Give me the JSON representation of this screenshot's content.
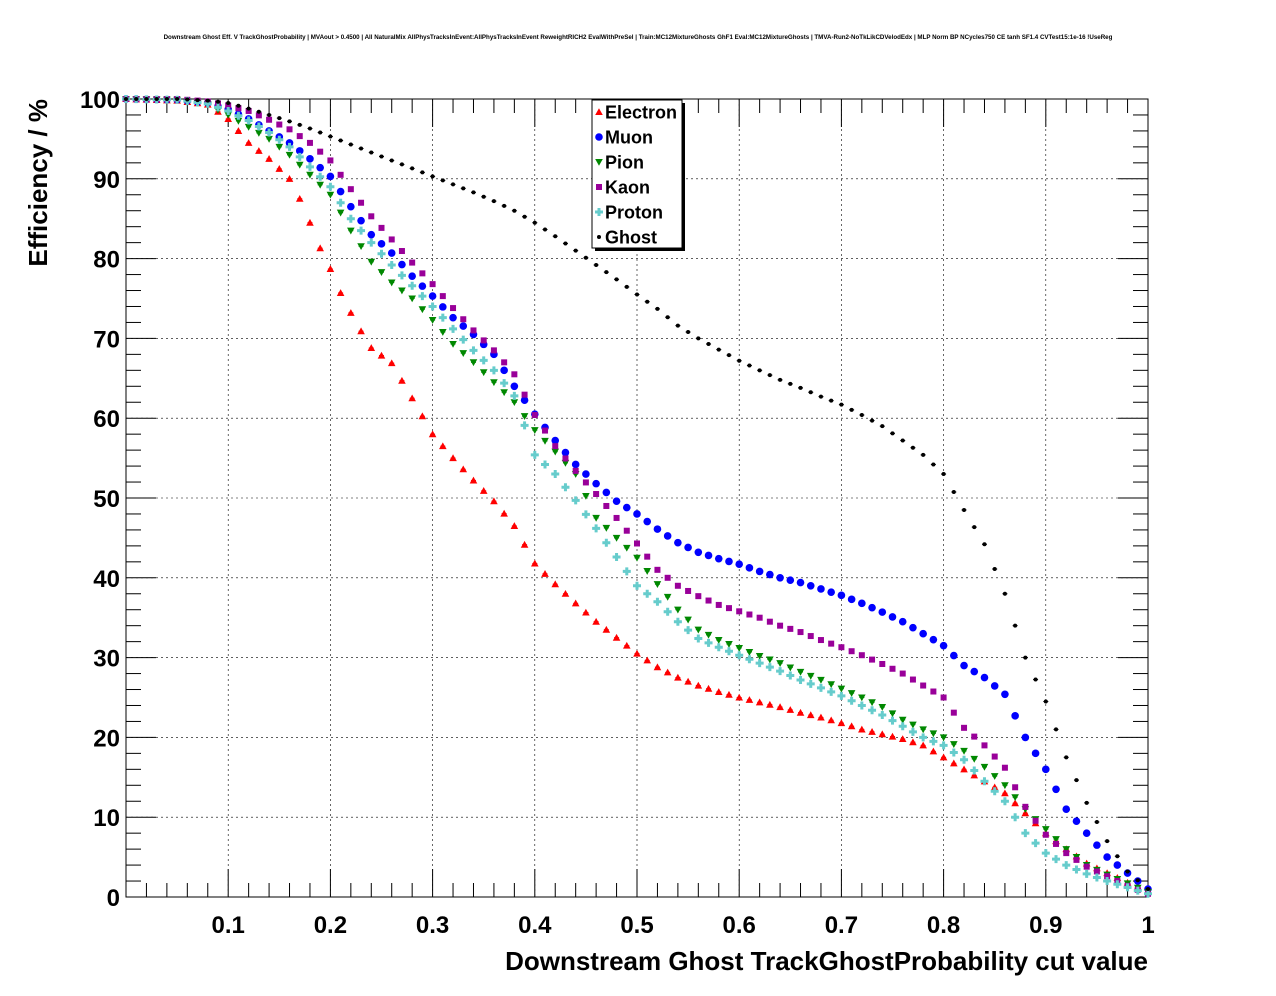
{
  "chart_data": {
    "type": "scatter",
    "title": "Downstream Ghost Eff. V TrackGhostProbability | MVAout > 0.4500 | All NaturalMix AllPhysTracksInEvent:AllPhysTracksInEvent ReweightRICH2 EvalWithPreSel | Train:MC12MixtureGhosts GhF1 Eval:MC12MixtureGhosts | TMVA-Run2-NoTkLikCDVelodEdx | MLP Norm BP NCycles750 CE tanh SF1.4 CVTest15:1e-16 !UseReg",
    "xlabel": "Downstream Ghost TrackGhostProbability cut value",
    "ylabel": "Efficiency / %",
    "xlim": [
      0,
      1
    ],
    "ylim": [
      0,
      100
    ],
    "grid": true,
    "legend_position": "top-center",
    "x_ticks": [
      "0.1",
      "0.2",
      "0.3",
      "0.4",
      "0.5",
      "0.6",
      "0.7",
      "0.8",
      "0.9",
      "1"
    ],
    "y_ticks": [
      "0",
      "10",
      "20",
      "30",
      "40",
      "50",
      "60",
      "70",
      "80",
      "90",
      "100"
    ],
    "x_tick_values": [
      0.1,
      0.2,
      0.3,
      0.4,
      0.5,
      0.6,
      0.7,
      0.8,
      0.9,
      1.0
    ],
    "y_tick_values": [
      0,
      10,
      20,
      30,
      40,
      50,
      60,
      70,
      80,
      90,
      100
    ],
    "series": [
      {
        "name": "Electron",
        "color": "#ff0000",
        "marker": "triangle-up",
        "points": [
          [
            0.0,
            100
          ],
          [
            0.05,
            99.8
          ],
          [
            0.08,
            99.3
          ],
          [
            0.1,
            97.5
          ],
          [
            0.12,
            94.5
          ],
          [
            0.14,
            92.5
          ],
          [
            0.16,
            90.0
          ],
          [
            0.17,
            87.5
          ],
          [
            0.18,
            84.5
          ],
          [
            0.19,
            81.3
          ],
          [
            0.2,
            78.7
          ],
          [
            0.21,
            75.7
          ],
          [
            0.22,
            73.2
          ],
          [
            0.23,
            70.9
          ],
          [
            0.24,
            68.8
          ],
          [
            0.26,
            66.9
          ],
          [
            0.28,
            62.5
          ],
          [
            0.3,
            58.0
          ],
          [
            0.32,
            55.0
          ],
          [
            0.34,
            52.2
          ],
          [
            0.36,
            49.6
          ],
          [
            0.38,
            46.5
          ],
          [
            0.4,
            41.8
          ],
          [
            0.42,
            39.2
          ],
          [
            0.44,
            36.8
          ],
          [
            0.46,
            34.5
          ],
          [
            0.48,
            32.5
          ],
          [
            0.5,
            30.5
          ],
          [
            0.52,
            28.8
          ],
          [
            0.54,
            27.5
          ],
          [
            0.56,
            26.5
          ],
          [
            0.58,
            25.7
          ],
          [
            0.6,
            25.0
          ],
          [
            0.62,
            24.4
          ],
          [
            0.64,
            23.8
          ],
          [
            0.66,
            23.1
          ],
          [
            0.68,
            22.5
          ],
          [
            0.7,
            21.8
          ],
          [
            0.72,
            21.0
          ],
          [
            0.74,
            20.4
          ],
          [
            0.76,
            19.8
          ],
          [
            0.78,
            19.0
          ],
          [
            0.8,
            17.5
          ],
          [
            0.82,
            16.0
          ],
          [
            0.84,
            14.5
          ],
          [
            0.86,
            13.0
          ],
          [
            0.88,
            10.5
          ],
          [
            0.9,
            8.0
          ],
          [
            0.92,
            6.0
          ],
          [
            0.94,
            4.2
          ],
          [
            0.96,
            3.0
          ],
          [
            0.98,
            1.8
          ],
          [
            1.0,
            0.8
          ]
        ]
      },
      {
        "name": "Muon",
        "color": "#0000ff",
        "marker": "circle",
        "points": [
          [
            0.0,
            100
          ],
          [
            0.05,
            99.9
          ],
          [
            0.08,
            99.5
          ],
          [
            0.1,
            98.7
          ],
          [
            0.12,
            97.5
          ],
          [
            0.14,
            96.0
          ],
          [
            0.16,
            94.5
          ],
          [
            0.18,
            92.5
          ],
          [
            0.2,
            90.3
          ],
          [
            0.22,
            86.5
          ],
          [
            0.24,
            83.0
          ],
          [
            0.26,
            80.7
          ],
          [
            0.28,
            77.8
          ],
          [
            0.3,
            75.3
          ],
          [
            0.32,
            72.6
          ],
          [
            0.34,
            70.5
          ],
          [
            0.36,
            68.0
          ],
          [
            0.38,
            64.0
          ],
          [
            0.4,
            60.5
          ],
          [
            0.42,
            57.2
          ],
          [
            0.44,
            54.2
          ],
          [
            0.46,
            51.8
          ],
          [
            0.48,
            49.6
          ],
          [
            0.5,
            48.0
          ],
          [
            0.52,
            46.1
          ],
          [
            0.54,
            44.4
          ],
          [
            0.56,
            43.2
          ],
          [
            0.58,
            42.4
          ],
          [
            0.6,
            41.7
          ],
          [
            0.62,
            40.8
          ],
          [
            0.64,
            40.0
          ],
          [
            0.66,
            39.4
          ],
          [
            0.68,
            38.6
          ],
          [
            0.7,
            37.8
          ],
          [
            0.72,
            36.8
          ],
          [
            0.74,
            35.7
          ],
          [
            0.76,
            34.5
          ],
          [
            0.78,
            33.0
          ],
          [
            0.8,
            31.5
          ],
          [
            0.82,
            29.0
          ],
          [
            0.84,
            27.5
          ],
          [
            0.86,
            25.4
          ],
          [
            0.88,
            20.0
          ],
          [
            0.9,
            16.0
          ],
          [
            0.92,
            11.0
          ],
          [
            0.94,
            8.0
          ],
          [
            0.96,
            5.0
          ],
          [
            0.98,
            3.0
          ],
          [
            1.0,
            1.0
          ]
        ]
      },
      {
        "name": "Pion",
        "color": "#008800",
        "marker": "triangle-down",
        "points": [
          [
            0.0,
            100
          ],
          [
            0.05,
            99.9
          ],
          [
            0.08,
            99.3
          ],
          [
            0.1,
            98.0
          ],
          [
            0.12,
            96.5
          ],
          [
            0.14,
            95.0
          ],
          [
            0.16,
            93.0
          ],
          [
            0.18,
            90.5
          ],
          [
            0.2,
            88.0
          ],
          [
            0.22,
            83.5
          ],
          [
            0.24,
            79.6
          ],
          [
            0.26,
            77.0
          ],
          [
            0.28,
            75.0
          ],
          [
            0.3,
            72.3
          ],
          [
            0.32,
            69.3
          ],
          [
            0.34,
            67.0
          ],
          [
            0.36,
            64.5
          ],
          [
            0.38,
            62.0
          ],
          [
            0.4,
            58.5
          ],
          [
            0.42,
            55.8
          ],
          [
            0.44,
            53.0
          ],
          [
            0.46,
            47.5
          ],
          [
            0.48,
            45.0
          ],
          [
            0.5,
            42.5
          ],
          [
            0.52,
            39.2
          ],
          [
            0.54,
            36.0
          ],
          [
            0.56,
            33.5
          ],
          [
            0.58,
            32.2
          ],
          [
            0.6,
            31.2
          ],
          [
            0.62,
            30.2
          ],
          [
            0.64,
            29.3
          ],
          [
            0.66,
            28.2
          ],
          [
            0.68,
            27.2
          ],
          [
            0.7,
            26.1
          ],
          [
            0.72,
            25.0
          ],
          [
            0.74,
            23.8
          ],
          [
            0.76,
            22.2
          ],
          [
            0.78,
            21.0
          ],
          [
            0.8,
            20.0
          ],
          [
            0.82,
            18.3
          ],
          [
            0.84,
            16.3
          ],
          [
            0.86,
            14.0
          ],
          [
            0.88,
            11.0
          ],
          [
            0.9,
            8.5
          ],
          [
            0.92,
            6.0
          ],
          [
            0.94,
            4.0
          ],
          [
            0.96,
            2.8
          ],
          [
            0.98,
            1.7
          ],
          [
            1.0,
            0.6
          ]
        ]
      },
      {
        "name": "Kaon",
        "color": "#990099",
        "marker": "square",
        "points": [
          [
            0.0,
            100
          ],
          [
            0.05,
            100
          ],
          [
            0.08,
            99.7
          ],
          [
            0.1,
            99.2
          ],
          [
            0.12,
            98.5
          ],
          [
            0.14,
            97.4
          ],
          [
            0.16,
            96.2
          ],
          [
            0.18,
            94.5
          ],
          [
            0.2,
            92.3
          ],
          [
            0.22,
            88.7
          ],
          [
            0.24,
            85.3
          ],
          [
            0.26,
            82.4
          ],
          [
            0.28,
            79.5
          ],
          [
            0.3,
            76.8
          ],
          [
            0.32,
            73.8
          ],
          [
            0.34,
            71.0
          ],
          [
            0.36,
            68.5
          ],
          [
            0.38,
            65.5
          ],
          [
            0.4,
            60.4
          ],
          [
            0.42,
            56.5
          ],
          [
            0.44,
            53.4
          ],
          [
            0.46,
            50.5
          ],
          [
            0.48,
            47.5
          ],
          [
            0.5,
            44.3
          ],
          [
            0.52,
            41.0
          ],
          [
            0.54,
            39.0
          ],
          [
            0.56,
            37.7
          ],
          [
            0.58,
            36.6
          ],
          [
            0.6,
            35.8
          ],
          [
            0.62,
            35.0
          ],
          [
            0.64,
            34.0
          ],
          [
            0.66,
            33.2
          ],
          [
            0.68,
            32.2
          ],
          [
            0.7,
            31.3
          ],
          [
            0.72,
            30.3
          ],
          [
            0.74,
            29.2
          ],
          [
            0.76,
            28.0
          ],
          [
            0.78,
            26.5
          ],
          [
            0.8,
            25.0
          ],
          [
            0.82,
            21.2
          ],
          [
            0.84,
            19.0
          ],
          [
            0.86,
            16.2
          ],
          [
            0.88,
            11.3
          ],
          [
            0.9,
            7.8
          ],
          [
            0.92,
            5.5
          ],
          [
            0.94,
            3.8
          ],
          [
            0.96,
            2.6
          ],
          [
            0.98,
            1.4
          ],
          [
            1.0,
            0.4
          ]
        ]
      },
      {
        "name": "Proton",
        "color": "#66cccc",
        "marker": "cross",
        "points": [
          [
            0.0,
            100
          ],
          [
            0.05,
            99.9
          ],
          [
            0.08,
            99.4
          ],
          [
            0.1,
            98.5
          ],
          [
            0.12,
            97.3
          ],
          [
            0.14,
            95.8
          ],
          [
            0.16,
            94.0
          ],
          [
            0.18,
            91.5
          ],
          [
            0.2,
            89.0
          ],
          [
            0.22,
            85.0
          ],
          [
            0.24,
            82.0
          ],
          [
            0.26,
            79.2
          ],
          [
            0.28,
            76.6
          ],
          [
            0.3,
            74.0
          ],
          [
            0.32,
            71.2
          ],
          [
            0.34,
            68.5
          ],
          [
            0.36,
            66.0
          ],
          [
            0.38,
            62.8
          ],
          [
            0.4,
            55.4
          ],
          [
            0.42,
            53.0
          ],
          [
            0.44,
            49.7
          ],
          [
            0.46,
            46.2
          ],
          [
            0.48,
            42.6
          ],
          [
            0.5,
            39.0
          ],
          [
            0.52,
            37.0
          ],
          [
            0.54,
            34.5
          ],
          [
            0.56,
            32.4
          ],
          [
            0.58,
            31.3
          ],
          [
            0.6,
            30.3
          ],
          [
            0.62,
            29.3
          ],
          [
            0.64,
            28.3
          ],
          [
            0.66,
            27.2
          ],
          [
            0.68,
            26.2
          ],
          [
            0.7,
            25.2
          ],
          [
            0.72,
            24.0
          ],
          [
            0.74,
            22.8
          ],
          [
            0.76,
            21.4
          ],
          [
            0.78,
            20.0
          ],
          [
            0.8,
            19.0
          ],
          [
            0.82,
            17.2
          ],
          [
            0.84,
            14.5
          ],
          [
            0.86,
            12.0
          ],
          [
            0.88,
            8.0
          ],
          [
            0.9,
            5.5
          ],
          [
            0.92,
            4.0
          ],
          [
            0.94,
            2.9
          ],
          [
            0.96,
            2.0
          ],
          [
            0.98,
            1.2
          ],
          [
            1.0,
            0.4
          ]
        ]
      },
      {
        "name": "Ghost",
        "color": "#000000",
        "marker": "dot",
        "points": [
          [
            0.0,
            100
          ],
          [
            0.05,
            100
          ],
          [
            0.08,
            99.8
          ],
          [
            0.1,
            99.5
          ],
          [
            0.12,
            98.8
          ],
          [
            0.14,
            98.0
          ],
          [
            0.16,
            97.2
          ],
          [
            0.18,
            96.3
          ],
          [
            0.2,
            95.3
          ],
          [
            0.22,
            94.3
          ],
          [
            0.24,
            93.3
          ],
          [
            0.26,
            92.3
          ],
          [
            0.28,
            91.3
          ],
          [
            0.3,
            90.3
          ],
          [
            0.32,
            89.3
          ],
          [
            0.34,
            88.3
          ],
          [
            0.36,
            87.2
          ],
          [
            0.38,
            86.0
          ],
          [
            0.4,
            84.5
          ],
          [
            0.42,
            82.8
          ],
          [
            0.44,
            81.0
          ],
          [
            0.46,
            79.2
          ],
          [
            0.48,
            77.4
          ],
          [
            0.5,
            75.5
          ],
          [
            0.52,
            73.7
          ],
          [
            0.54,
            71.6
          ],
          [
            0.56,
            70.0
          ],
          [
            0.58,
            68.6
          ],
          [
            0.6,
            67.2
          ],
          [
            0.62,
            66.0
          ],
          [
            0.64,
            64.8
          ],
          [
            0.66,
            63.8
          ],
          [
            0.68,
            62.7
          ],
          [
            0.7,
            61.7
          ],
          [
            0.72,
            60.4
          ],
          [
            0.74,
            59.0
          ],
          [
            0.76,
            57.2
          ],
          [
            0.78,
            55.4
          ],
          [
            0.8,
            53.0
          ],
          [
            0.82,
            48.5
          ],
          [
            0.84,
            44.2
          ],
          [
            0.86,
            38.0
          ],
          [
            0.88,
            30.0
          ],
          [
            0.9,
            24.5
          ],
          [
            0.92,
            17.5
          ],
          [
            0.94,
            11.8
          ],
          [
            0.96,
            7.0
          ],
          [
            0.98,
            3.2
          ],
          [
            1.0,
            1.0
          ]
        ]
      }
    ]
  }
}
